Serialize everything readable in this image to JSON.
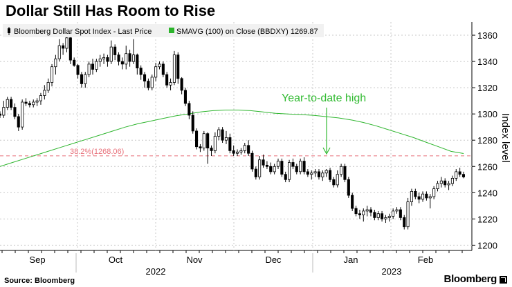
{
  "title": "Dollar Still Has Room to Rise",
  "source": "Source: Bloomberg",
  "brand": "Bloomberg",
  "chart_data": {
    "type": "candlestick",
    "legend": [
      {
        "name": "Bloomberg Dollar Spot Index - Last Price",
        "color": "#000000"
      },
      {
        "name": "SMAVG (100)  on Close (BBDXY) 1269.87",
        "color": "#2db52d"
      }
    ],
    "legend_placement": "top-left",
    "ylabel": "Index level",
    "ylim": [
      1196,
      1370
    ],
    "yticks": [
      1200,
      1220,
      1240,
      1260,
      1280,
      1300,
      1320,
      1340,
      1360
    ],
    "y_axis_side": "right",
    "grid": true,
    "x_month_labels": [
      "Sep",
      "Oct",
      "Nov",
      "Dec",
      "Jan",
      "Feb"
    ],
    "x_year_labels": [
      "2022",
      "2023"
    ],
    "reference_line": {
      "label": "38.2%(1268.06)",
      "value": 1268.06,
      "color": "#e8707a"
    },
    "annotation": {
      "text": "Year-to-date high",
      "color": "#33bb33"
    },
    "sma_100": [
      1260,
      1263,
      1266,
      1269,
      1272,
      1275,
      1278,
      1281,
      1284,
      1287,
      1290,
      1292.5,
      1294.5,
      1296.5,
      1298.5,
      1300,
      1301.5,
      1302.5,
      1303,
      1303,
      1302.5,
      1301.5,
      1300.5,
      1300,
      1299.5,
      1299,
      1298,
      1297,
      1295.5,
      1293.5,
      1291,
      1288,
      1285,
      1282,
      1278.5,
      1275,
      1271.5,
      1269.87
    ],
    "ohlc": [
      [
        1300,
        1302,
        1297,
        1299
      ],
      [
        1299,
        1310,
        1297,
        1305
      ],
      [
        1305,
        1313,
        1303,
        1311
      ],
      [
        1311,
        1313,
        1303,
        1305
      ],
      [
        1305,
        1308,
        1296,
        1298
      ],
      [
        1298,
        1300,
        1287,
        1290
      ],
      [
        1290,
        1311,
        1288,
        1309
      ],
      [
        1309,
        1312,
        1306,
        1308
      ],
      [
        1308,
        1310,
        1305,
        1307
      ],
      [
        1307,
        1311,
        1305,
        1309
      ],
      [
        1309,
        1312,
        1306,
        1310
      ],
      [
        1310,
        1316,
        1307,
        1314
      ],
      [
        1314,
        1322,
        1311,
        1318
      ],
      [
        1318,
        1327,
        1316,
        1324
      ],
      [
        1324,
        1338,
        1321,
        1336
      ],
      [
        1336,
        1345,
        1330,
        1342
      ],
      [
        1342,
        1357,
        1340,
        1352
      ],
      [
        1352,
        1354,
        1345,
        1350
      ],
      [
        1350,
        1362,
        1347,
        1358
      ],
      [
        1358,
        1360,
        1338,
        1341
      ],
      [
        1341,
        1343,
        1336,
        1337
      ],
      [
        1337,
        1338,
        1327,
        1330
      ],
      [
        1330,
        1332,
        1320,
        1323
      ],
      [
        1323,
        1332,
        1320,
        1330
      ],
      [
        1330,
        1340,
        1328,
        1338
      ],
      [
        1338,
        1342,
        1330,
        1334
      ],
      [
        1334,
        1342,
        1332,
        1340
      ],
      [
        1340,
        1345,
        1336,
        1342
      ],
      [
        1342,
        1346,
        1338,
        1343
      ],
      [
        1343,
        1345,
        1336,
        1340
      ],
      [
        1340,
        1356,
        1338,
        1351
      ],
      [
        1351,
        1353,
        1341,
        1345
      ],
      [
        1345,
        1347,
        1337,
        1340
      ],
      [
        1340,
        1343,
        1334,
        1338
      ],
      [
        1338,
        1352,
        1334,
        1346
      ],
      [
        1346,
        1349,
        1336,
        1340
      ],
      [
        1340,
        1357,
        1338,
        1345
      ],
      [
        1345,
        1346,
        1330,
        1335
      ],
      [
        1335,
        1337,
        1326,
        1330
      ],
      [
        1330,
        1332,
        1320,
        1325
      ],
      [
        1325,
        1327,
        1318,
        1320
      ],
      [
        1320,
        1330,
        1318,
        1328
      ],
      [
        1328,
        1339,
        1325,
        1336
      ],
      [
        1336,
        1340,
        1334,
        1338
      ],
      [
        1338,
        1340,
        1328,
        1330
      ],
      [
        1330,
        1332,
        1320,
        1322
      ],
      [
        1322,
        1327,
        1318,
        1324
      ],
      [
        1324,
        1348,
        1322,
        1345
      ],
      [
        1345,
        1347,
        1323,
        1327
      ],
      [
        1327,
        1328,
        1315,
        1318
      ],
      [
        1318,
        1320,
        1306,
        1308
      ],
      [
        1308,
        1310,
        1296,
        1299
      ],
      [
        1299,
        1302,
        1285,
        1287
      ],
      [
        1287,
        1289,
        1273,
        1275
      ],
      [
        1275,
        1277,
        1271,
        1274
      ],
      [
        1274,
        1287,
        1272,
        1285
      ],
      [
        1285,
        1286,
        1262,
        1274
      ],
      [
        1274,
        1276,
        1268,
        1272
      ],
      [
        1272,
        1286,
        1270,
        1283
      ],
      [
        1283,
        1290,
        1280,
        1288
      ],
      [
        1288,
        1290,
        1278,
        1280
      ],
      [
        1280,
        1287,
        1277,
        1282
      ],
      [
        1282,
        1285,
        1270,
        1272
      ],
      [
        1272,
        1276,
        1268,
        1270
      ],
      [
        1270,
        1273,
        1268,
        1271
      ],
      [
        1271,
        1274,
        1269,
        1272
      ],
      [
        1272,
        1278,
        1270,
        1276
      ],
      [
        1276,
        1280,
        1268,
        1270
      ],
      [
        1270,
        1272,
        1256,
        1258
      ],
      [
        1258,
        1260,
        1250,
        1252
      ],
      [
        1252,
        1268,
        1250,
        1265
      ],
      [
        1265,
        1269,
        1259,
        1261
      ],
      [
        1261,
        1264,
        1258,
        1260
      ],
      [
        1260,
        1263,
        1254,
        1256
      ],
      [
        1256,
        1262,
        1254,
        1260
      ],
      [
        1260,
        1266,
        1258,
        1264
      ],
      [
        1264,
        1266,
        1252,
        1254
      ],
      [
        1254,
        1256,
        1248,
        1250
      ],
      [
        1250,
        1265,
        1248,
        1263
      ],
      [
        1263,
        1266,
        1258,
        1260
      ],
      [
        1260,
        1262,
        1254,
        1256
      ],
      [
        1256,
        1266,
        1254,
        1264
      ],
      [
        1264,
        1267,
        1254,
        1256
      ],
      [
        1256,
        1258,
        1252,
        1254
      ],
      [
        1254,
        1257,
        1250,
        1255
      ],
      [
        1255,
        1258,
        1252,
        1256
      ],
      [
        1256,
        1258,
        1250,
        1252
      ],
      [
        1252,
        1257,
        1249,
        1255
      ],
      [
        1255,
        1258,
        1252,
        1257
      ],
      [
        1257,
        1259,
        1248,
        1250
      ],
      [
        1250,
        1252,
        1244,
        1246
      ],
      [
        1246,
        1257,
        1244,
        1254
      ],
      [
        1254,
        1262,
        1252,
        1260
      ],
      [
        1260,
        1262,
        1248,
        1250
      ],
      [
        1250,
        1252,
        1236,
        1238
      ],
      [
        1238,
        1240,
        1226,
        1228
      ],
      [
        1228,
        1230,
        1222,
        1224
      ],
      [
        1224,
        1227,
        1220,
        1223
      ],
      [
        1223,
        1228,
        1218,
        1226
      ],
      [
        1226,
        1230,
        1222,
        1227
      ],
      [
        1227,
        1229,
        1222,
        1225
      ],
      [
        1225,
        1227,
        1219,
        1221
      ],
      [
        1221,
        1226,
        1219,
        1224
      ],
      [
        1224,
        1226,
        1218,
        1220
      ],
      [
        1220,
        1223,
        1217,
        1221
      ],
      [
        1221,
        1224,
        1218,
        1222
      ],
      [
        1222,
        1228,
        1220,
        1226
      ],
      [
        1226,
        1229,
        1224,
        1227
      ],
      [
        1227,
        1229,
        1219,
        1221
      ],
      [
        1221,
        1223,
        1212,
        1214
      ],
      [
        1214,
        1236,
        1212,
        1233
      ],
      [
        1233,
        1243,
        1230,
        1241
      ],
      [
        1241,
        1243,
        1235,
        1237
      ],
      [
        1237,
        1240,
        1232,
        1235
      ],
      [
        1235,
        1241,
        1233,
        1239
      ],
      [
        1239,
        1241,
        1234,
        1236
      ],
      [
        1236,
        1239,
        1228,
        1237
      ],
      [
        1237,
        1245,
        1235,
        1243
      ],
      [
        1243,
        1249,
        1241,
        1247
      ],
      [
        1247,
        1252,
        1244,
        1249
      ],
      [
        1249,
        1251,
        1244,
        1246
      ],
      [
        1246,
        1249,
        1242,
        1247
      ],
      [
        1247,
        1253,
        1245,
        1251
      ],
      [
        1251,
        1258,
        1249,
        1256
      ],
      [
        1256,
        1259,
        1252,
        1254
      ],
      [
        1254,
        1256,
        1251,
        1252
      ]
    ]
  }
}
